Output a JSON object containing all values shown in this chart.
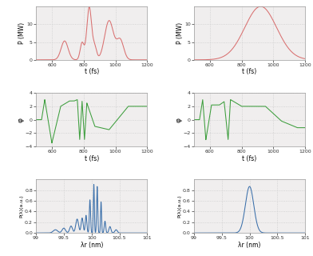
{
  "fig_width": 3.92,
  "fig_height": 3.2,
  "dpi": 100,
  "bg_color": "#f0eeee",
  "red_color": "#d97070",
  "green_color": "#3d9e3d",
  "blue_color": "#3a6faa",
  "t_min": 500,
  "t_max": 1200,
  "t_ticks": [
    600,
    800,
    1000,
    1200
  ],
  "p_max": 15,
  "p_ticks": [
    0,
    5,
    10
  ],
  "phi_min": -4,
  "phi_max": 4,
  "phi_ticks": [
    -4,
    -2,
    0,
    2,
    4
  ],
  "lam_min": 99,
  "lam_max": 101,
  "lam_ticks": [
    99,
    99.5,
    100,
    100.5,
    101
  ],
  "spec_max": 1.0,
  "spec_ticks": [
    0,
    0.2,
    0.4,
    0.6,
    0.8
  ],
  "xlabel_t": "t (fs)",
  "xlabel_lam": "λr (nm)",
  "ylabel_p": "P (MW)",
  "ylabel_phi": "φ",
  "ylabel_spec_l": "P(λ)(a.u.)",
  "ylabel_spec_r": "P(λ)(a.u.)"
}
